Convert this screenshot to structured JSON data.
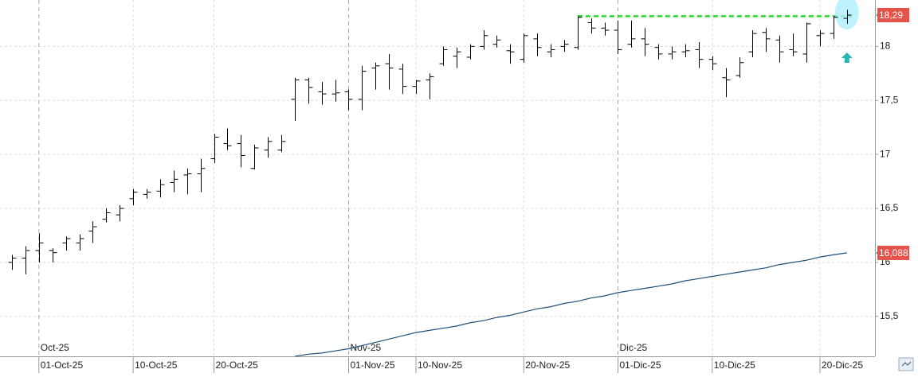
{
  "chart_data": {
    "type": "ohlc",
    "categories": [
      null,
      null,
      "01-Oct-25",
      null,
      null,
      null,
      null,
      null,
      null,
      "10-Oct-25",
      null,
      null,
      null,
      null,
      null,
      "20-Oct-25",
      null,
      null,
      null,
      null,
      null,
      null,
      null,
      null,
      null,
      "01-Nov-25",
      null,
      null,
      null,
      null,
      "10-Nov-25",
      null,
      null,
      null,
      null,
      null,
      null,
      null,
      "20-Nov-25",
      null,
      null,
      null,
      null,
      null,
      null,
      "01-Dic-25",
      null,
      null,
      null,
      null,
      null,
      null,
      "10-Dic-25",
      null,
      null,
      null,
      null,
      null,
      null,
      null,
      "20-Dic-25",
      null,
      null
    ],
    "period_labels": [
      null,
      null,
      "Oct-25",
      null,
      null,
      null,
      null,
      null,
      null,
      null,
      null,
      null,
      null,
      null,
      null,
      null,
      null,
      null,
      null,
      null,
      null,
      null,
      null,
      null,
      null,
      "Nov-25",
      null,
      null,
      null,
      null,
      null,
      null,
      null,
      null,
      null,
      null,
      null,
      null,
      null,
      null,
      null,
      null,
      null,
      null,
      null,
      "Dic-25",
      null,
      null,
      null,
      null,
      null,
      null,
      null,
      null,
      null,
      null,
      null,
      null,
      null,
      null,
      null,
      null,
      null
    ],
    "ohlc": {
      "color": "#000000",
      "open": [
        16.0,
        16.04,
        16.11,
        16.11,
        16.18,
        16.18,
        16.29,
        16.4,
        16.44,
        16.59,
        16.63,
        16.66,
        16.74,
        16.81,
        16.82,
        16.96,
        17.1,
        17.1,
        16.87,
        17.04,
        17.04,
        17.51,
        17.69,
        17.58,
        17.56,
        17.58,
        17.51,
        17.8,
        17.84,
        17.79,
        17.63,
        17.69,
        17.84,
        17.91,
        17.9,
        18.0,
        18.02,
        17.96,
        17.88,
        18.07,
        17.95,
        18.0,
        17.99,
        18.22,
        18.17,
        18.15,
        18.02,
        18.07,
        17.99,
        17.93,
        17.95,
        17.97,
        17.88,
        17.71,
        17.73,
        17.95,
        18.13,
        18.06,
        17.97,
        17.93,
        18.1,
        18.12,
        18.26
      ],
      "high": [
        16.07,
        16.15,
        16.27,
        16.13,
        16.24,
        16.26,
        16.38,
        16.5,
        16.53,
        16.68,
        16.68,
        16.77,
        16.85,
        16.87,
        16.96,
        17.19,
        17.24,
        17.18,
        17.09,
        17.16,
        17.18,
        17.71,
        17.71,
        17.67,
        17.69,
        17.6,
        17.82,
        17.85,
        17.93,
        17.84,
        17.69,
        17.75,
        18.0,
        17.99,
        18.02,
        18.15,
        18.1,
        18.02,
        18.12,
        18.12,
        18.02,
        18.06,
        18.28,
        18.26,
        18.22,
        18.24,
        18.24,
        18.17,
        18.02,
        18.0,
        18.02,
        18.04,
        17.91,
        17.8,
        17.9,
        18.15,
        18.17,
        18.1,
        18.12,
        18.22,
        18.15,
        18.28,
        18.34
      ],
      "low": [
        15.93,
        15.89,
        16.0,
        16.0,
        16.11,
        16.11,
        16.18,
        16.37,
        16.38,
        16.53,
        16.59,
        16.6,
        16.65,
        16.63,
        16.65,
        16.92,
        17.04,
        16.88,
        16.86,
        16.97,
        17.02,
        17.31,
        17.47,
        17.46,
        17.49,
        17.41,
        17.41,
        17.6,
        17.6,
        17.56,
        17.56,
        17.51,
        17.82,
        17.8,
        17.88,
        17.97,
        17.99,
        17.84,
        17.85,
        17.91,
        17.9,
        17.95,
        17.97,
        18.12,
        18.1,
        17.93,
        17.99,
        17.91,
        17.88,
        17.88,
        17.9,
        17.8,
        17.78,
        17.53,
        17.71,
        17.9,
        17.95,
        17.85,
        17.91,
        17.85,
        18.0,
        18.07,
        18.21
      ],
      "close": [
        16.04,
        16.11,
        16.18,
        16.09,
        16.22,
        16.22,
        16.33,
        16.46,
        16.5,
        16.65,
        16.65,
        16.72,
        16.77,
        16.82,
        16.87,
        17.16,
        17.08,
        16.99,
        17.06,
        17.12,
        17.12,
        17.69,
        17.62,
        17.56,
        17.57,
        17.51,
        17.77,
        17.82,
        17.8,
        17.63,
        17.68,
        17.72,
        17.97,
        17.95,
        18.0,
        18.1,
        18.06,
        17.95,
        18.1,
        17.99,
        17.97,
        18.02,
        18.27,
        18.17,
        18.15,
        17.97,
        18.07,
        18.02,
        17.93,
        17.95,
        17.96,
        17.88,
        17.84,
        17.69,
        17.85,
        18.12,
        18.07,
        17.95,
        17.95,
        18.21,
        18.12,
        18.27,
        18.29
      ],
      "last_value_label": "18,29",
      "label_color": "#e5534b"
    },
    "moving_average": {
      "color": "#1f4e79",
      "values": [
        null,
        null,
        null,
        null,
        null,
        null,
        null,
        null,
        null,
        null,
        null,
        null,
        null,
        null,
        null,
        null,
        null,
        null,
        null,
        null,
        null,
        15.13,
        15.15,
        15.16,
        15.18,
        15.2,
        15.23,
        15.26,
        15.29,
        15.32,
        15.35,
        15.37,
        15.39,
        15.41,
        15.44,
        15.46,
        15.49,
        15.51,
        15.54,
        15.57,
        15.59,
        15.62,
        15.64,
        15.67,
        15.69,
        15.72,
        15.74,
        15.76,
        15.78,
        15.8,
        15.83,
        15.85,
        15.87,
        15.89,
        15.91,
        15.93,
        15.95,
        15.98,
        16.0,
        16.02,
        16.05,
        16.07,
        16.088
      ],
      "last_value_label": "16,088",
      "label_color": "#e5534b"
    },
    "resistance": {
      "value": 18.28,
      "from_index": 42,
      "to_index": 62,
      "color": "#22dd22"
    },
    "ylim": [
      15.13,
      18.43
    ],
    "yticks": [
      {
        "value": 15.5,
        "label": "15,5"
      },
      16,
      {
        "value": 16.5,
        "label": "16,5"
      },
      17,
      {
        "value": 17.5,
        "label": "17,5"
      },
      18
    ],
    "grid": true
  }
}
